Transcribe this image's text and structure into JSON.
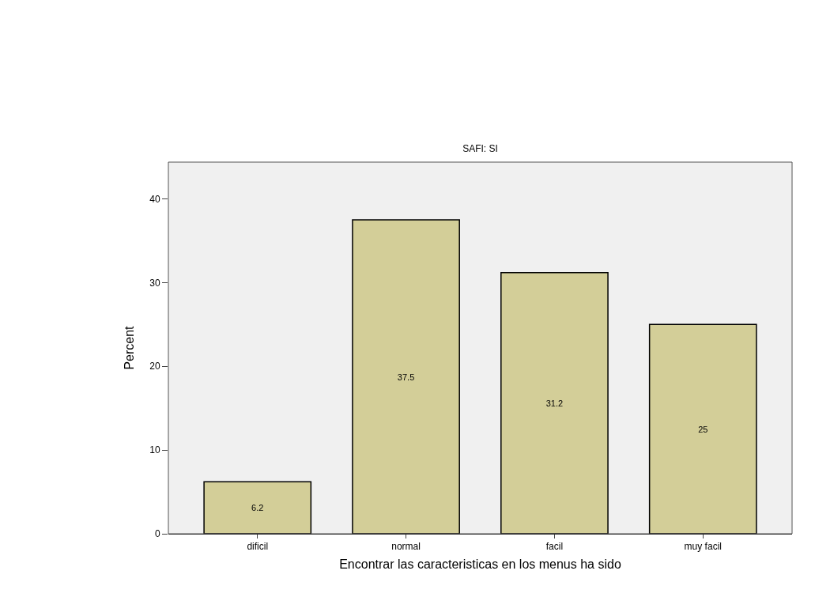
{
  "chart_data": {
    "type": "bar",
    "title": "SAFI: SI",
    "xlabel": "Encontrar las caracteristicas en los menus ha sido",
    "ylabel": "Percent",
    "categories": [
      "dificil",
      "normal",
      "facil",
      "muy facil"
    ],
    "values": [
      6.2,
      37.5,
      31.2,
      25
    ],
    "color": "#d3ce98",
    "ylim": [
      0,
      44.4
    ],
    "yticks": [
      0,
      10,
      20,
      30,
      40
    ],
    "grid": false,
    "data_labels": true
  }
}
